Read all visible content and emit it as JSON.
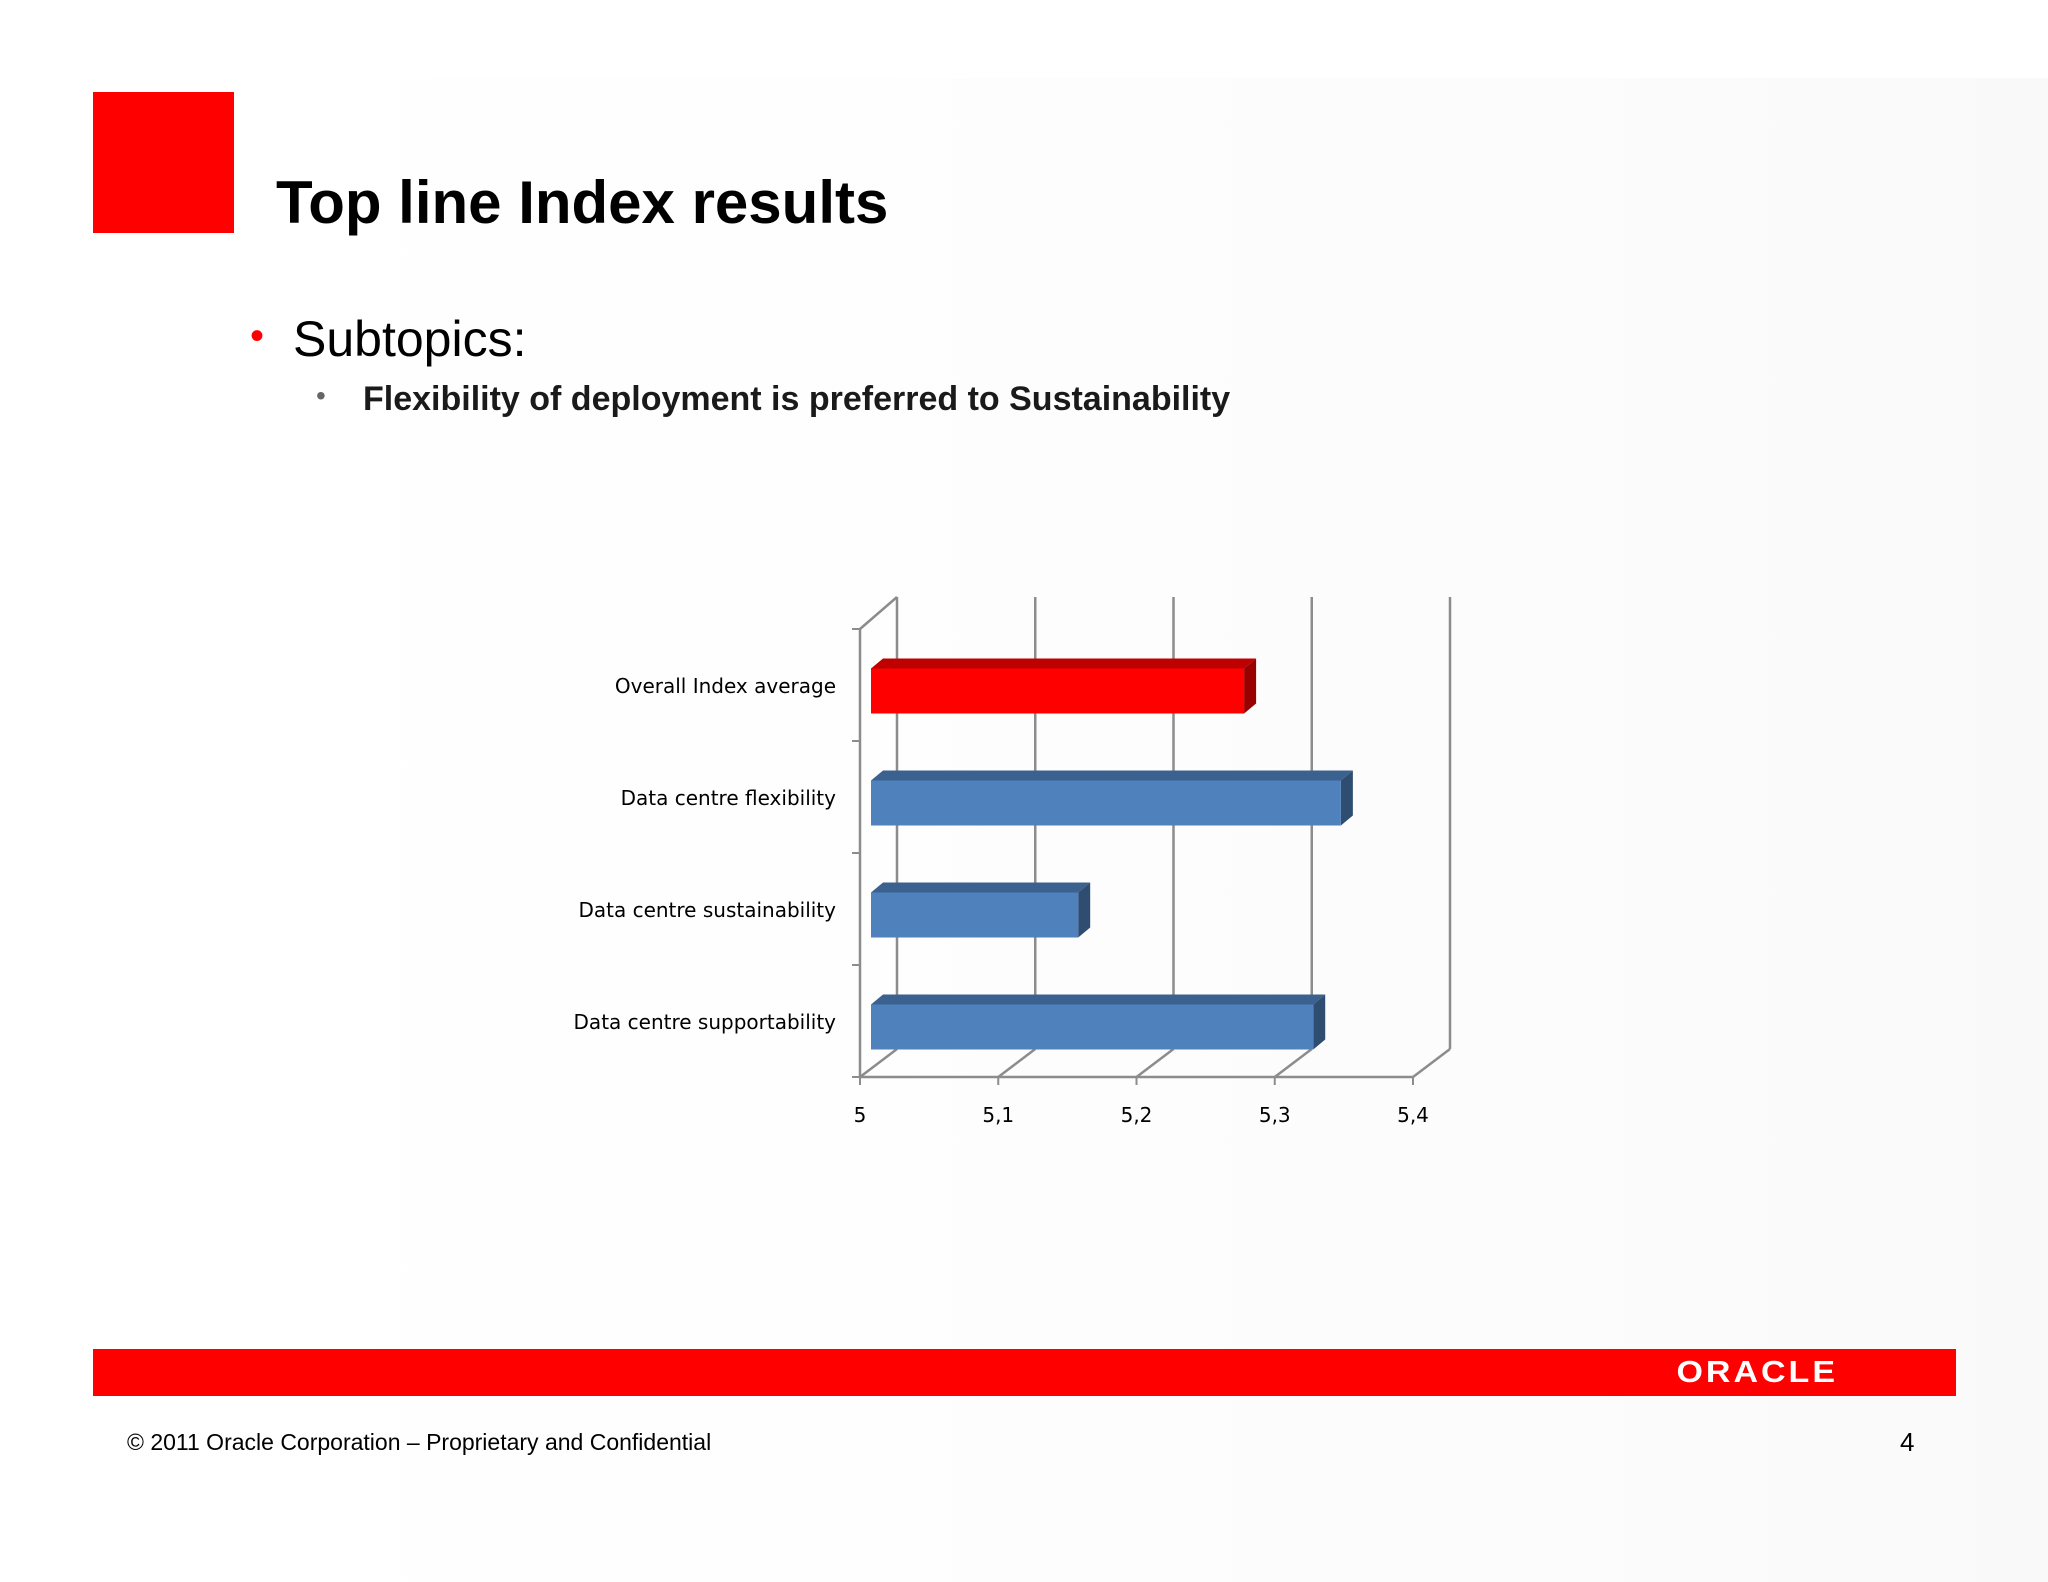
{
  "slide": {
    "title": "Top line Index results",
    "bullet_1": "Subtopics:",
    "bullet_1_marker": "•",
    "bullet_2": "Flexibility of deployment is preferred to Sustainability",
    "bullet_2_marker": "•"
  },
  "footer": {
    "logo_text": "ORACLE",
    "copyright": "© 2011 Oracle Corporation – Proprietary and Confidential",
    "page_number": "4"
  },
  "colors": {
    "accent_red": "#ff0000",
    "bar_blue": "#4f81bd",
    "bar_red": "#ff0000"
  },
  "chart_data": {
    "type": "bar",
    "orientation": "horizontal",
    "style": "3d",
    "categories": [
      "Overall Index average",
      "Data centre flexibility",
      "Data centre sustainability",
      "Data centre supportability"
    ],
    "values": [
      5.28,
      5.35,
      5.16,
      5.33
    ],
    "bar_colors": [
      "#ff0000",
      "#4f81bd",
      "#4f81bd",
      "#4f81bd"
    ],
    "x_ticks": [
      "5",
      "5,1",
      "5,2",
      "5,3",
      "5,4"
    ],
    "xlim": [
      5,
      5.4
    ],
    "grid": true,
    "title": "",
    "xlabel": "",
    "ylabel": ""
  }
}
